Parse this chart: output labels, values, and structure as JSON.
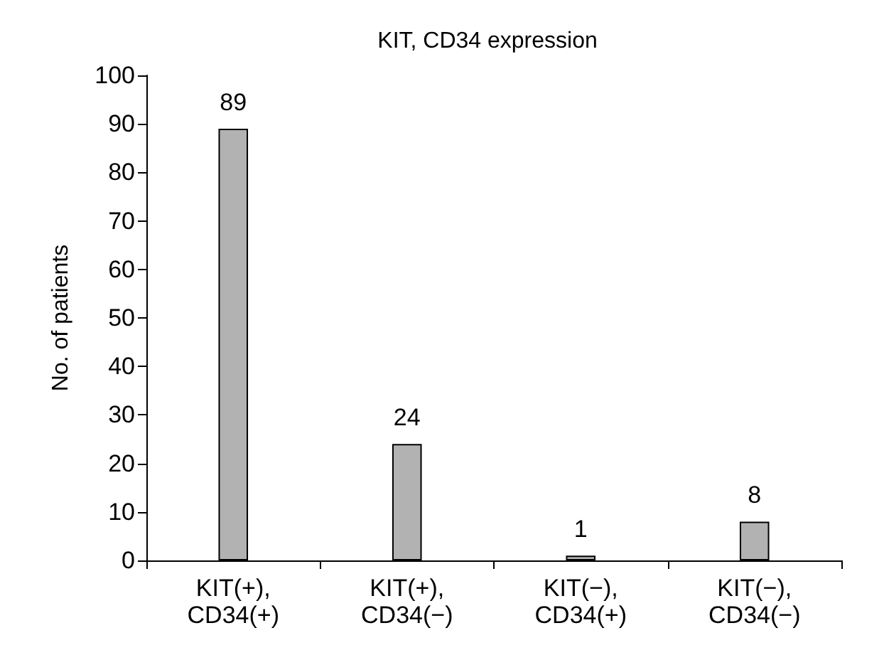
{
  "chart_data": {
    "type": "bar",
    "title": "KIT, CD34 expression",
    "ylabel": "No. of patients",
    "categories": [
      "KIT(+),\nCD34(+)",
      "KIT(+),\nCD34(−)",
      "KIT(−),\nCD34(+)",
      "KIT(−),\nCD34(−)"
    ],
    "values": [
      89,
      24,
      1,
      8
    ],
    "color": "#b2b2b2",
    "ylim": [
      0,
      100
    ],
    "yticks": [
      0,
      10,
      20,
      30,
      40,
      50,
      60,
      70,
      80,
      90,
      100
    ],
    "grid": false,
    "data_labels": true
  }
}
